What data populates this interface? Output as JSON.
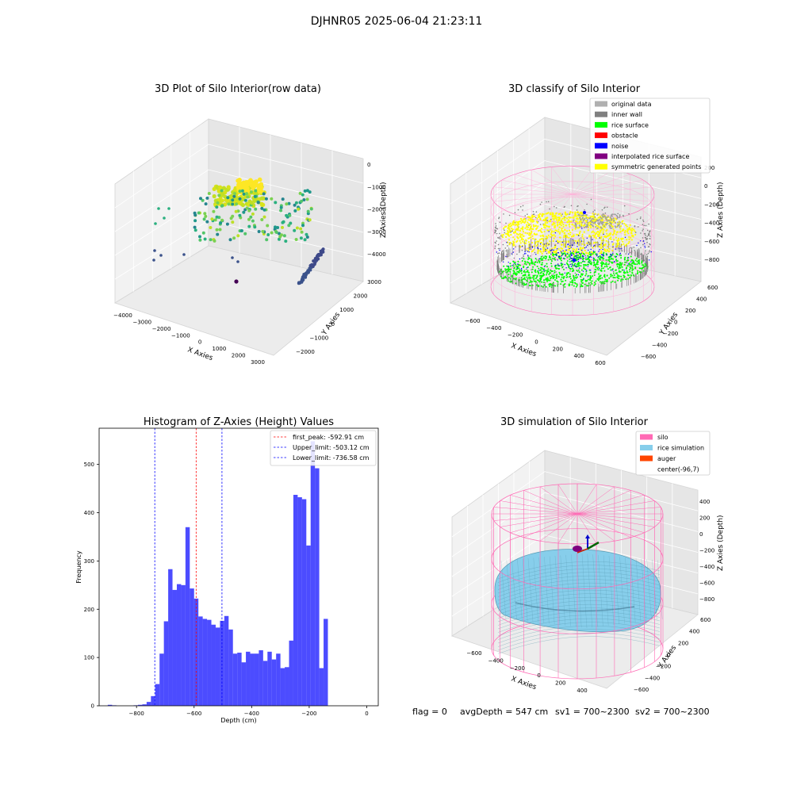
{
  "suptitle": "DJHNR05 2025-06-04 21:23:11",
  "panels": {
    "raw": {
      "title": "3D Plot of Silo Interior(row data)",
      "xlabel": "X Axies",
      "ylabel": "Y Axies",
      "zlabel": "Z Axies (Depth)",
      "xticks": [
        "−4000",
        "−3000",
        "−2000",
        "−1000",
        "0",
        "1000",
        "2000",
        "3000"
      ],
      "yticks": [
        "−2000",
        "−1000",
        "0",
        "1000",
        "2000",
        "3000"
      ],
      "zticks": [
        "0",
        "−1000",
        "−2000",
        "−3000",
        "−4000"
      ]
    },
    "classify": {
      "title": "3D classify of Silo Interior",
      "xlabel": "X Axies",
      "ylabel": "Y Axies",
      "zlabel": "Z Axies (Depth)",
      "xticks": [
        "−600",
        "−400",
        "−200",
        "0",
        "200",
        "400",
        "600"
      ],
      "yticks": [
        "−600",
        "−400",
        "−200",
        "0",
        "200",
        "400",
        "600"
      ],
      "zticks": [
        "200",
        "0",
        "−200",
        "−400",
        "−600",
        "−800"
      ],
      "legend": [
        {
          "label": "original data",
          "color": "#b0b0b0"
        },
        {
          "label": "inner wall",
          "color": "#808080"
        },
        {
          "label": "rice surface",
          "color": "#00ff00"
        },
        {
          "label": "obstacle",
          "color": "#ff0000"
        },
        {
          "label": "noise",
          "color": "#0000ff"
        },
        {
          "label": "interpolated rice surface",
          "color": "#800080"
        },
        {
          "label": "symmetric generated points",
          "color": "#ffff00"
        }
      ]
    },
    "simulation": {
      "title": "3D simulation of Silo Interior",
      "xlabel": "X Axies",
      "ylabel": "Y Axies",
      "zlabel": "Z Axies (Depth)",
      "xticks": [
        "−600",
        "−400",
        "−200",
        "0",
        "200",
        "400"
      ],
      "yticks": [
        "−600",
        "−400",
        "−200",
        "0",
        "200",
        "400",
        "600"
      ],
      "zticks": [
        "400",
        "200",
        "0",
        "−200",
        "−400",
        "−600",
        "−800"
      ],
      "legend": [
        {
          "label": "silo",
          "color": "#ff69b4"
        },
        {
          "label": "rice simulation",
          "color": "#87ceeb"
        },
        {
          "label": "auger",
          "color": "#ff4500"
        },
        {
          "label": "center(-96,7)",
          "color": ""
        }
      ]
    }
  },
  "chart_data": {
    "type": "bar",
    "title": "Histogram of Z-Axies (Height) Values",
    "xlabel": "Depth (cm)",
    "ylabel": "Frequency",
    "xlim": [
      -930,
      40
    ],
    "ylim": [
      0,
      575
    ],
    "xticks": [
      -800,
      -600,
      -400,
      -200,
      0
    ],
    "xtick_labels": [
      "−800",
      "−600",
      "−400",
      "−200",
      "0"
    ],
    "yticks": [
      0,
      100,
      200,
      300,
      400,
      500
    ],
    "bar_color": "#0000ff",
    "bin_start": -900,
    "bin_width": 15,
    "values": [
      2,
      1,
      0,
      0,
      0,
      0,
      1,
      2,
      3,
      8,
      20,
      45,
      108,
      175,
      283,
      240,
      252,
      250,
      370,
      243,
      222,
      185,
      180,
      178,
      168,
      162,
      176,
      186,
      158,
      108,
      110,
      90,
      112,
      108,
      108,
      115,
      93,
      112,
      96,
      108,
      78,
      80,
      135,
      437,
      432,
      428,
      332,
      548,
      492,
      78,
      180
    ],
    "vlines": [
      {
        "x": -592.91,
        "color": "#ff0000",
        "label": "first_peak: -592.91 cm"
      },
      {
        "x": -503.12,
        "color": "#0000ff",
        "label": "Upper_limit: -503.12 cm"
      },
      {
        "x": -736.58,
        "color": "#0000ff",
        "label": "Lower_limit: -736.58 cm"
      }
    ],
    "legend_position": "top-right"
  },
  "footer": {
    "flag": "flag = 0",
    "avg": "avgDepth = 547 cm",
    "sv1": "sv1 = 700~2300",
    "sv2": "sv2 = 700~2300"
  }
}
